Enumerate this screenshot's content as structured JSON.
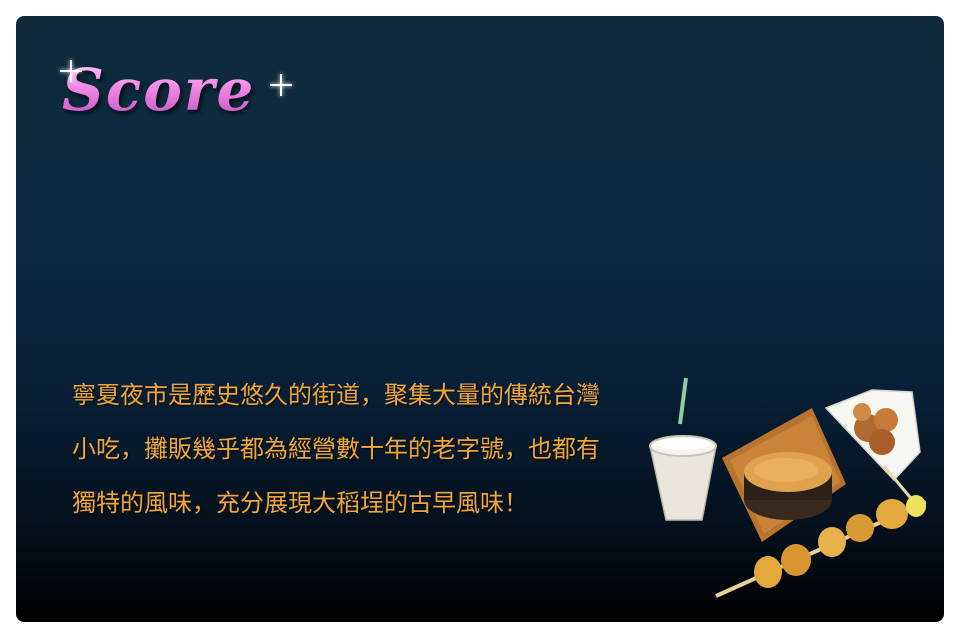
{
  "panel": {
    "title": "Score",
    "description": "寧夏夜市是歷史悠久的街道，聚集大量的傳統台灣小吃，攤販幾乎都為經營數十年的老字號，也都有獨特的風味，充分展現大稻埕的古早風味！"
  },
  "illustration": {
    "items": [
      "drink-cup",
      "pudding-cake",
      "fried-chicken-cone",
      "skewer"
    ]
  },
  "colors": {
    "title_pink": "#e07ad8",
    "text_orange": "#f2a63a",
    "panel_top": "#0f2b3a",
    "panel_bottom": "#000000"
  }
}
